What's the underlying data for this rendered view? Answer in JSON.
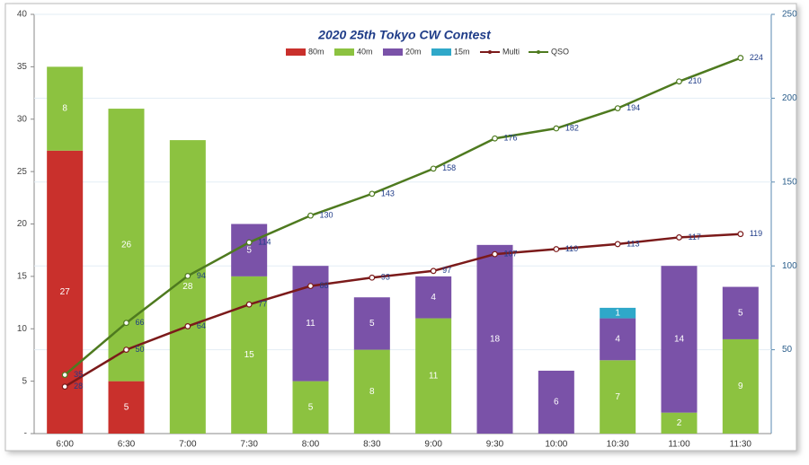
{
  "chart_data": {
    "type": "bar",
    "title": "2020 25th Tokyo  CW Contest",
    "categories": [
      "6:00",
      "6:30",
      "7:00",
      "7:30",
      "8:00",
      "8:30",
      "9:00",
      "9:30",
      "10:00",
      "10:30",
      "11:00",
      "11:30"
    ],
    "series": [
      {
        "name": "80m",
        "color": "#c9302c",
        "values": [
          27,
          5,
          null,
          null,
          null,
          null,
          null,
          null,
          null,
          null,
          null,
          null
        ]
      },
      {
        "name": "40m",
        "color": "#8cc240",
        "values": [
          8,
          26,
          28,
          15,
          5,
          8,
          11,
          null,
          null,
          7,
          2,
          9
        ]
      },
      {
        "name": "20m",
        "color": "#7a52a8",
        "values": [
          null,
          null,
          null,
          5,
          11,
          5,
          4,
          18,
          6,
          4,
          14,
          5
        ]
      },
      {
        "name": "15m",
        "color": "#2fa8c9",
        "values": [
          null,
          null,
          null,
          null,
          null,
          null,
          null,
          null,
          null,
          1,
          null,
          null
        ]
      },
      {
        "name": "Multi",
        "type": "line",
        "axis": "y2",
        "color": "#7b1a1a",
        "values": [
          28,
          50,
          64,
          77,
          88,
          93,
          97,
          107,
          110,
          113,
          117,
          119
        ]
      },
      {
        "name": "QSO",
        "type": "line",
        "axis": "y2",
        "color": "#4e7a1f",
        "values": [
          35,
          66,
          94,
          114,
          130,
          143,
          158,
          176,
          182,
          194,
          210,
          224
        ]
      }
    ],
    "ylim": [
      0,
      40
    ],
    "yticks": [
      {
        "value": 0,
        "label": "-"
      },
      5,
      10,
      15,
      20,
      25,
      30,
      35,
      40
    ],
    "y2lim": [
      0,
      250
    ],
    "y2ticks": [
      50,
      100,
      150,
      200,
      250
    ],
    "grid": true
  }
}
